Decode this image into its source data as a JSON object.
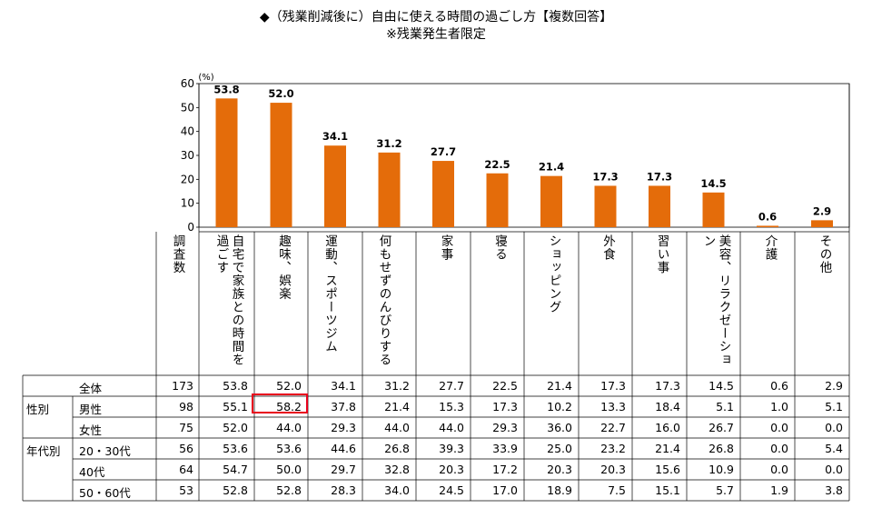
{
  "title": "◆（残業削減後に）自由に使える時間の過ごし方【複数回答】",
  "subtitle": "※残業発生者限定",
  "colors": {
    "bar": "#e46c0a",
    "highlight": "#e8001c",
    "grid": "#000000"
  },
  "chart_data": {
    "type": "bar",
    "unit": "(%)",
    "ylim": [
      0,
      60
    ],
    "yticks": [
      "0",
      "10",
      "20",
      "30",
      "40",
      "50",
      "60"
    ],
    "categories": [
      "自宅で家族との時間を過ごす",
      "趣味、娯楽",
      "運動、スポーツジム",
      "何もせずのんびりする",
      "家事",
      "寝る",
      "ショッピング",
      "外食",
      "習い事",
      "美容、リラクゼーション",
      "介護",
      "その他"
    ],
    "values": [
      53.8,
      52.0,
      34.1,
      31.2,
      27.7,
      22.5,
      21.4,
      17.3,
      17.3,
      14.5,
      0.6,
      2.9
    ],
    "value_labels": [
      "53.8",
      "52.0",
      "34.1",
      "31.2",
      "27.7",
      "22.5",
      "21.4",
      "17.3",
      "17.3",
      "14.5",
      "0.6",
      "2.9"
    ]
  },
  "table": {
    "count_header": "調査数",
    "groups": [
      {
        "label": "性別",
        "row_index": 1
      },
      {
        "label": "年代別",
        "row_index": 3
      }
    ],
    "rows": [
      {
        "label": "全体",
        "n": "173",
        "vals": [
          "53.8",
          "52.0",
          "34.1",
          "31.2",
          "27.7",
          "22.5",
          "21.4",
          "17.3",
          "17.3",
          "14.5",
          "0.6",
          "2.9"
        ]
      },
      {
        "label": "男性",
        "n": "98",
        "vals": [
          "55.1",
          "58.2",
          "37.8",
          "21.4",
          "15.3",
          "17.3",
          "10.2",
          "13.3",
          "18.4",
          "5.1",
          "1.0",
          "5.1"
        ]
      },
      {
        "label": "女性",
        "n": "75",
        "vals": [
          "52.0",
          "44.0",
          "29.3",
          "44.0",
          "44.0",
          "29.3",
          "36.0",
          "22.7",
          "16.0",
          "26.7",
          "0.0",
          "0.0"
        ]
      },
      {
        "label": "20・30代",
        "n": "56",
        "vals": [
          "53.6",
          "53.6",
          "44.6",
          "26.8",
          "39.3",
          "33.9",
          "25.0",
          "23.2",
          "21.4",
          "26.8",
          "0.0",
          "5.4"
        ]
      },
      {
        "label": "40代",
        "n": "64",
        "vals": [
          "54.7",
          "50.0",
          "29.7",
          "32.8",
          "20.3",
          "17.2",
          "20.3",
          "20.3",
          "15.6",
          "10.9",
          "0.0",
          "0.0"
        ]
      },
      {
        "label": "50・60代",
        "n": "53",
        "vals": [
          "52.8",
          "52.8",
          "28.3",
          "34.0",
          "24.5",
          "17.0",
          "18.9",
          "7.5",
          "15.1",
          "5.7",
          "1.9",
          "3.8"
        ]
      }
    ]
  }
}
